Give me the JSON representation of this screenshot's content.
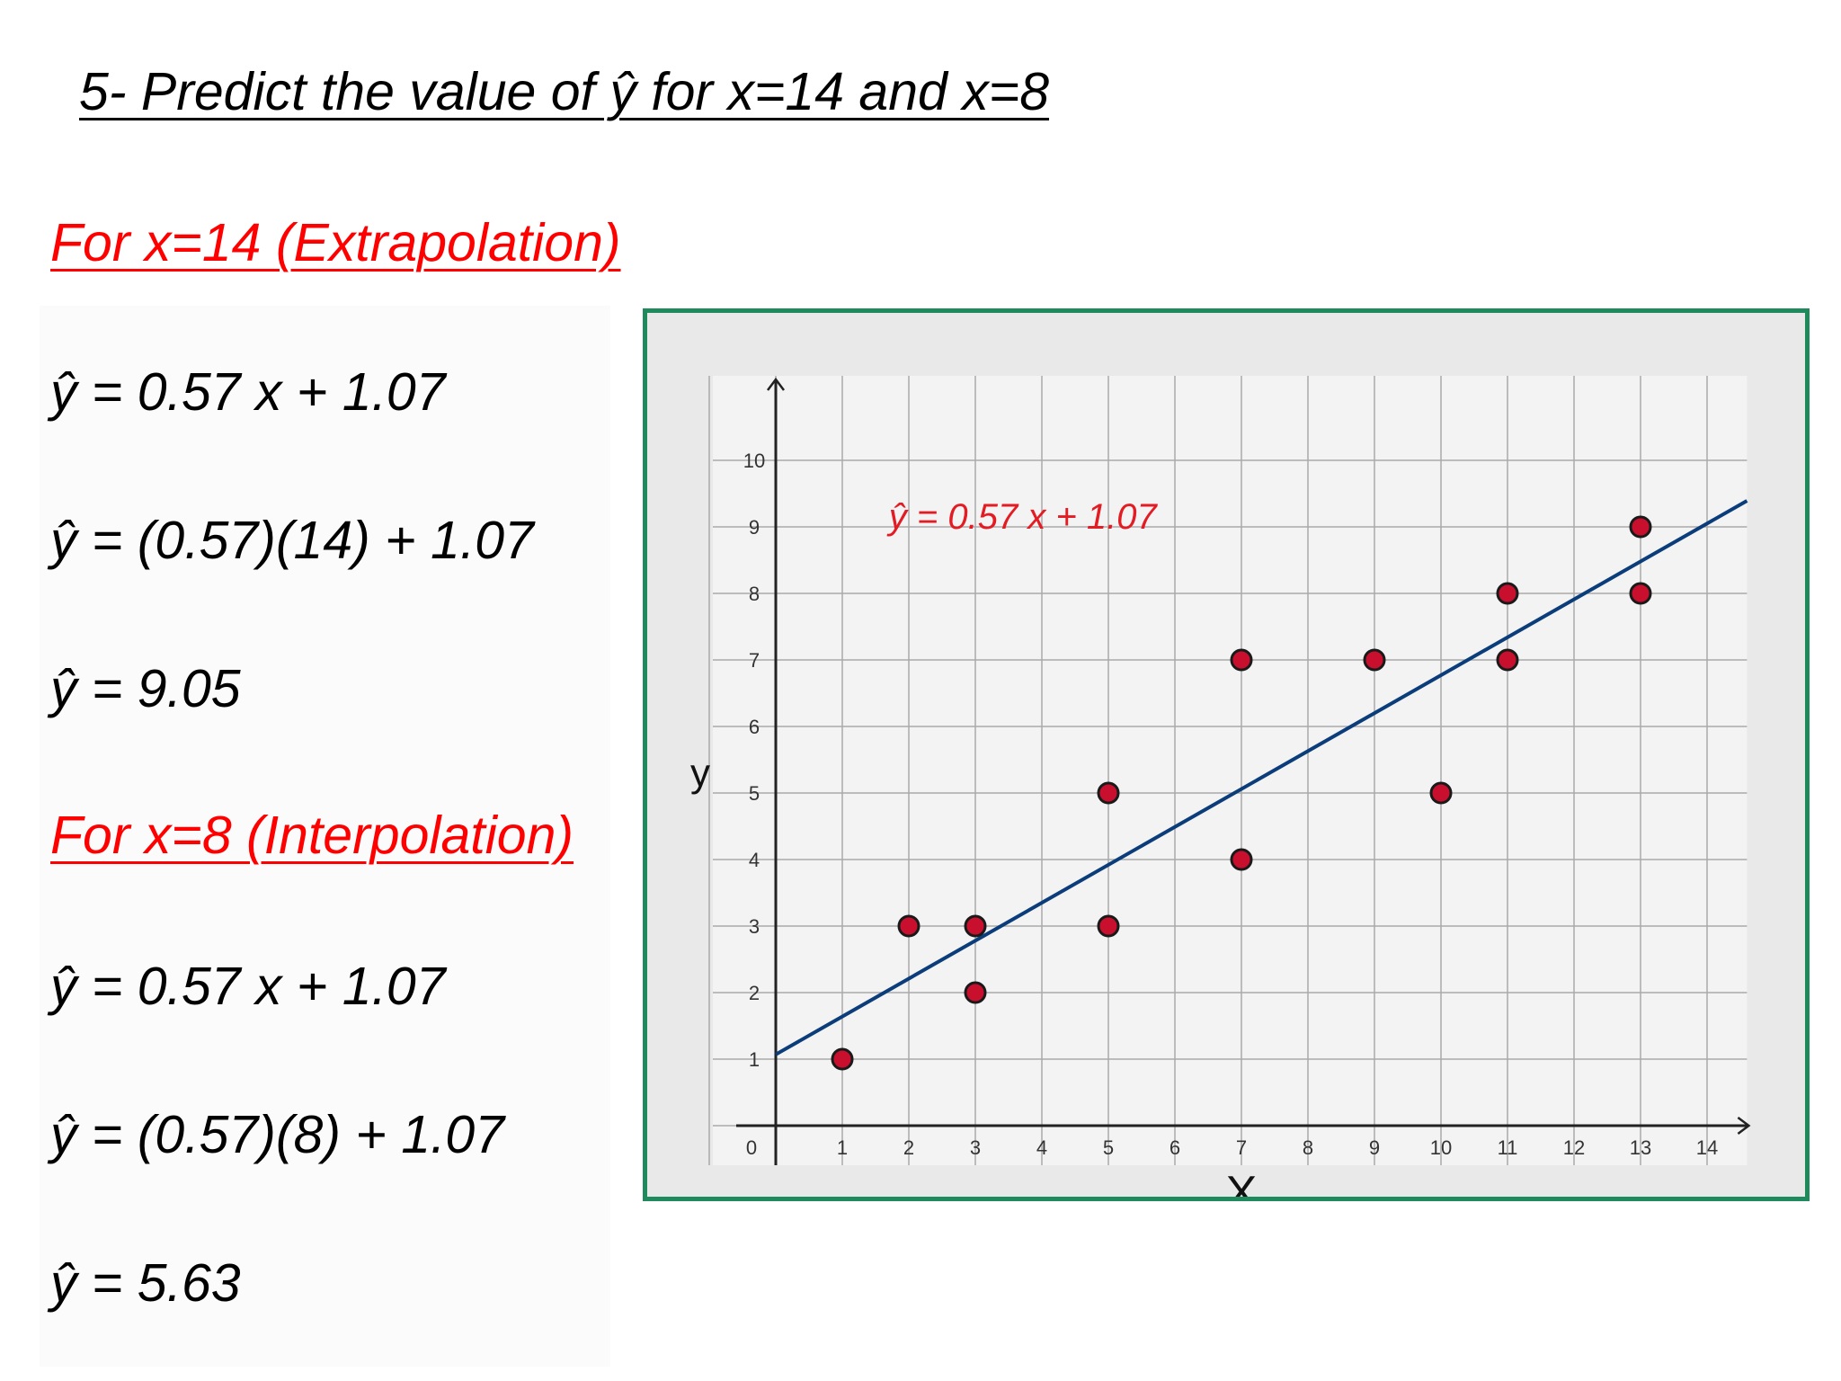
{
  "slide": {
    "title": "5- Predict the value of ŷ for x=14 and x=8",
    "extrapolation": {
      "heading": "For x=14 (Extrapolation)",
      "lines": [
        "ŷ = 0.57 x + 1.07",
        "ŷ = (0.57)(14) + 1.07",
        "ŷ = 9.05"
      ]
    },
    "interpolation": {
      "heading": "For x=8 (Interpolation)",
      "lines": [
        "ŷ = 0.57 x + 1.07",
        "ŷ = (0.57)(8) + 1.07",
        "ŷ = 5.63"
      ]
    }
  },
  "chart_data": {
    "type": "scatter",
    "xlabel": "X",
    "ylabel": "y",
    "origin_label": "0",
    "xlim": [
      0,
      14.6
    ],
    "ylim": [
      0,
      10.9
    ],
    "x_ticks": [
      1,
      2,
      3,
      4,
      5,
      6,
      7,
      8,
      9,
      10,
      11,
      12,
      13,
      14
    ],
    "y_ticks": [
      1,
      2,
      3,
      4,
      5,
      6,
      7,
      8,
      9,
      10
    ],
    "grid": true,
    "points": [
      {
        "x": 1,
        "y": 1
      },
      {
        "x": 2,
        "y": 3
      },
      {
        "x": 3,
        "y": 3
      },
      {
        "x": 3,
        "y": 2
      },
      {
        "x": 5,
        "y": 5
      },
      {
        "x": 5,
        "y": 3
      },
      {
        "x": 7,
        "y": 7
      },
      {
        "x": 7,
        "y": 4
      },
      {
        "x": 9,
        "y": 7
      },
      {
        "x": 10,
        "y": 5
      },
      {
        "x": 11,
        "y": 8
      },
      {
        "x": 11,
        "y": 7
      },
      {
        "x": 13,
        "y": 9
      },
      {
        "x": 13,
        "y": 8
      }
    ],
    "regression": {
      "label": "ŷ = 0.57 x + 1.07",
      "slope": 0.57,
      "intercept": 1.07,
      "x_range": [
        0,
        14.6
      ]
    },
    "colors": {
      "point_fill": "#c8102e",
      "point_stroke": "#1a1a1a",
      "line": "#0b3d7a",
      "label": "#e31b23",
      "grid": "#a9a9a9"
    }
  }
}
